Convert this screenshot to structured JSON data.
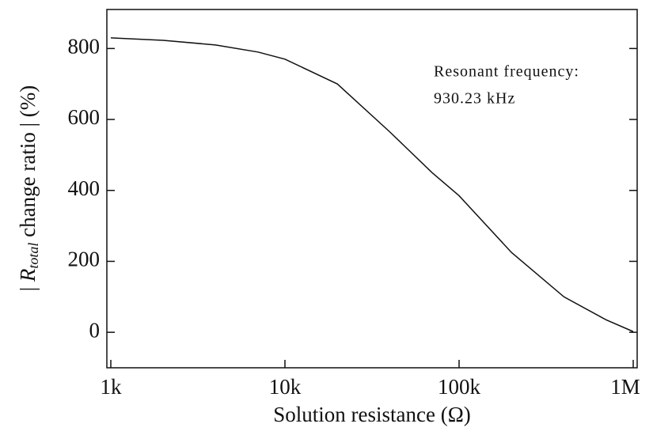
{
  "chart_data": {
    "type": "line",
    "xlabel": "Solution resistance (Ω)",
    "ylabel": [
      "| ",
      "R",
      "total",
      " change ratio | (%)"
    ],
    "annotation": [
      "Resonant frequency:",
      "930.23 kHz"
    ],
    "x": [
      1000,
      2000,
      4000,
      7000,
      10000,
      20000,
      40000,
      70000,
      100000,
      200000,
      400000,
      700000,
      1000000
    ],
    "series": [
      {
        "name": "R_total change ratio",
        "color": "#111111",
        "values": [
          830,
          823,
          810,
          790,
          770,
          700,
          565,
          450,
          385,
          225,
          100,
          35,
          2
        ]
      }
    ],
    "xscale": "log",
    "xlim": [
      1000,
      1000000
    ],
    "xticks": [
      {
        "value": 1000,
        "label": "1k"
      },
      {
        "value": 10000,
        "label": "10k"
      },
      {
        "value": 100000,
        "label": "100k"
      },
      {
        "value": 1000000,
        "label": "1M"
      }
    ],
    "ylim": [
      -100,
      910
    ],
    "yticks": [
      0,
      200,
      400,
      600,
      800
    ]
  }
}
